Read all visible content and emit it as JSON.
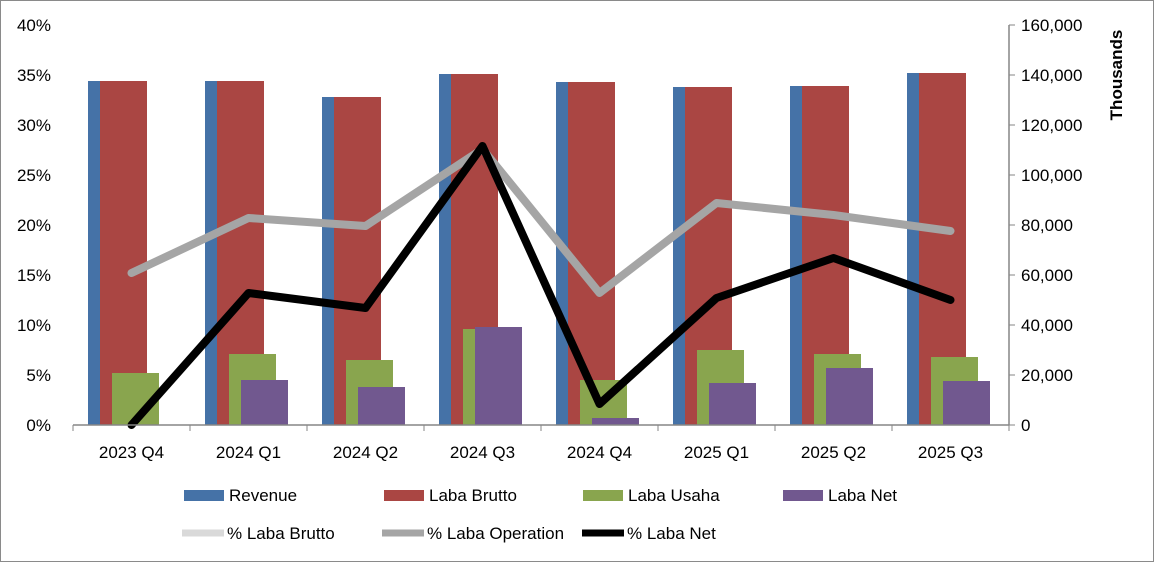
{
  "chart_data": {
    "type": "bar+line",
    "title": "",
    "categories": [
      "2023 Q4",
      "2024 Q1",
      "2024 Q2",
      "2024 Q3",
      "2024 Q4",
      "2025 Q1",
      "2025 Q2",
      "2025 Q3"
    ],
    "left_axis": {
      "label": "",
      "range": [
        0,
        40
      ],
      "ticks": [
        "0%",
        "5%",
        "10%",
        "15%",
        "20%",
        "25%",
        "30%",
        "35%",
        "40%"
      ]
    },
    "right_axis": {
      "label": "Thousands",
      "range": [
        0,
        160000
      ],
      "ticks": [
        "0",
        "20,000",
        "40,000",
        "60,000",
        "80,000",
        "100,000",
        "120,000",
        "140,000",
        "160,000"
      ]
    },
    "bar_series": [
      {
        "name": "Revenue",
        "color": "#4572A7",
        "axis": "right",
        "values": [
          137600,
          137600,
          131200,
          140400,
          137200,
          135200,
          135600,
          140800
        ]
      },
      {
        "name": "Laba Brutto",
        "color": "#AA4643",
        "axis": "right",
        "values": [
          137600,
          137600,
          131200,
          140400,
          137200,
          135200,
          135600,
          140800
        ]
      },
      {
        "name": "Laba Usaha",
        "color": "#89A54E",
        "axis": "right",
        "values": [
          20800,
          28400,
          26000,
          38400,
          18000,
          30000,
          28400,
          27200
        ]
      },
      {
        "name": "Laba Net",
        "color": "#71588F",
        "axis": "right",
        "values": [
          0,
          18000,
          15200,
          39200,
          2800,
          16800,
          22800,
          17600
        ]
      }
    ],
    "line_series": [
      {
        "name": "% Laba Brutto",
        "color": "#D9D9D9",
        "axis": "left",
        "values": [
          null,
          null,
          null,
          null,
          null,
          null,
          null,
          null
        ]
      },
      {
        "name": "% Laba Operation",
        "color": "#A5A5A5",
        "axis": "left",
        "values": [
          15.2,
          20.7,
          19.9,
          27.6,
          13.2,
          22.2,
          21.0,
          19.4
        ]
      },
      {
        "name": "% Laba Net",
        "color": "#000000",
        "axis": "left",
        "values": [
          0,
          13.2,
          11.7,
          27.9,
          2.1,
          12.7,
          16.7,
          12.5
        ]
      }
    ],
    "legend_position": "bottom",
    "grid": false
  }
}
